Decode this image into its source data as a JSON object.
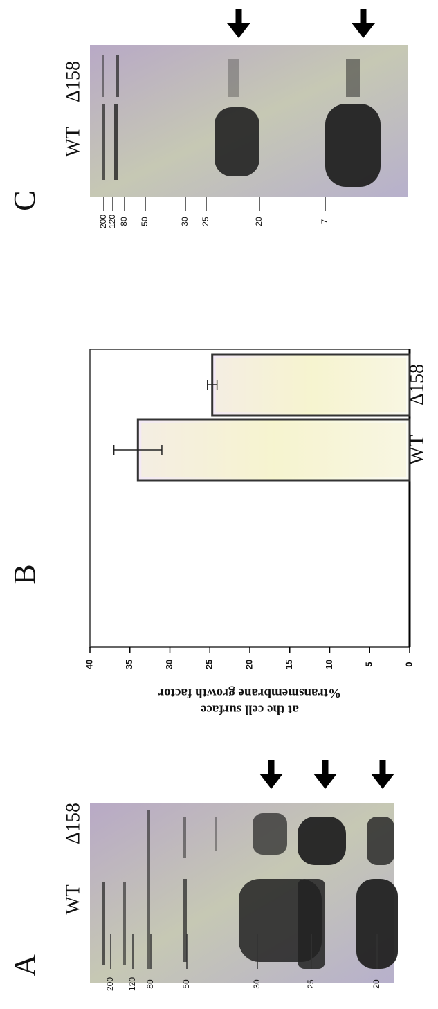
{
  "panels": {
    "a": "A",
    "b": "B",
    "c": "C"
  },
  "gel_a": {
    "lanes": [
      "WT",
      "Δ158"
    ],
    "markers": [
      "200",
      "120",
      "80",
      "50",
      "30",
      "25",
      "20"
    ]
  },
  "chart_data": {
    "type": "bar",
    "ylabel": [
      "%transmembrane growth factor",
      "at the cell surface"
    ],
    "categories": [
      "WT",
      "Δ158"
    ],
    "values": [
      34,
      24.7
    ],
    "errors": [
      3,
      0.6
    ],
    "color": "#f6f1cf",
    "ylim": [
      0,
      40
    ],
    "yticks": [
      0,
      5,
      10,
      15,
      20,
      25,
      30,
      35,
      40
    ]
  },
  "gel_c": {
    "lanes": [
      "WT",
      "Δ158"
    ],
    "markers": [
      "200",
      "120",
      "80",
      "50",
      "30",
      "25",
      "20",
      "7"
    ]
  }
}
